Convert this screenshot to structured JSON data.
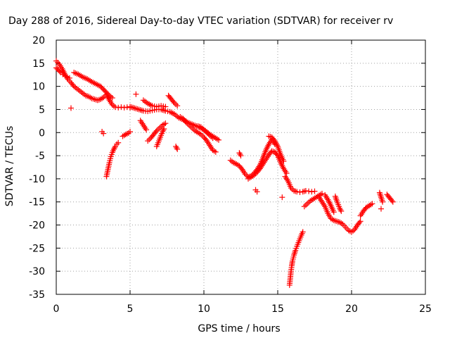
{
  "chart_data": {
    "type": "scatter",
    "title": "Day 288 of 2016, Sidereal Day-to-day VTEC variation (SDTVAR) for receiver rv",
    "xlabel": "GPS time / hours",
    "ylabel": "SDTVAR / TECUs",
    "xlim": [
      0,
      25
    ],
    "ylim": [
      -35,
      20
    ],
    "xticks": [
      0,
      5,
      10,
      15,
      20,
      25
    ],
    "yticks": [
      -35,
      -30,
      -25,
      -20,
      -15,
      -10,
      -5,
      0,
      5,
      10,
      15,
      20
    ],
    "grid": true,
    "marker": "+",
    "color": "#ff0000",
    "segments": [
      {
        "x": [
          0.0,
          0.2,
          0.4,
          0.6,
          0.8,
          1.0,
          1.2,
          1.4,
          1.6,
          1.8,
          2.0,
          2.2,
          2.4,
          2.6,
          2.8,
          3.0,
          3.2,
          3.4,
          3.6,
          3.8,
          4.0,
          4.2,
          4.4,
          4.6,
          4.8,
          5.0
        ],
        "y": [
          15.5,
          14.8,
          13.8,
          12.5,
          11.5,
          10.8,
          10.0,
          9.5,
          9.0,
          8.5,
          8.0,
          7.8,
          7.4,
          7.2,
          7.0,
          7.2,
          7.6,
          8.2,
          7.0,
          6.0,
          5.5,
          5.4,
          5.5,
          5.4,
          5.5,
          5.4
        ]
      },
      {
        "x": [
          0.0,
          0.15,
          0.3,
          0.45,
          0.6,
          0.75,
          0.9
        ],
        "y": [
          14.0,
          13.5,
          13.0,
          12.6,
          12.3,
          12.0,
          11.8
        ]
      },
      {
        "x": [
          1.2,
          1.5,
          1.8,
          2.1,
          2.4,
          2.7,
          3.0,
          3.3,
          3.6,
          3.8
        ],
        "y": [
          13.0,
          12.6,
          12.0,
          11.6,
          11.0,
          10.5,
          10.0,
          9.0,
          8.0,
          7.5
        ]
      },
      {
        "x": [
          3.4,
          3.5,
          3.6,
          3.7,
          3.8,
          3.9,
          4.0,
          4.1,
          4.2
        ],
        "y": [
          -9.5,
          -8.0,
          -6.5,
          -5.2,
          -4.3,
          -3.6,
          -3.0,
          -2.5,
          -2.2
        ]
      },
      {
        "x": [
          4.5,
          4.7,
          4.9,
          5.0
        ],
        "y": [
          -0.8,
          -0.4,
          -0.1,
          0.2
        ]
      },
      {
        "x": [
          3.1,
          3.2
        ],
        "y": [
          0.2,
          -0.2
        ]
      },
      {
        "x": [
          5.0,
          5.3,
          5.6,
          5.9,
          6.2,
          6.5,
          6.8,
          7.1,
          7.4,
          7.7,
          8.0,
          8.3,
          8.6,
          8.9,
          9.2,
          9.5,
          9.8,
          10.1,
          10.4,
          10.7,
          11.0
        ],
        "y": [
          5.6,
          5.3,
          5.0,
          4.7,
          4.6,
          4.8,
          5.0,
          5.0,
          4.7,
          4.5,
          4.0,
          3.2,
          2.8,
          2.2,
          1.8,
          1.4,
          1.0,
          0.4,
          -0.4,
          -1.0,
          -1.6
        ]
      },
      {
        "x": [
          5.9,
          6.2,
          6.5,
          6.8,
          7.1,
          7.4
        ],
        "y": [
          7.0,
          6.3,
          5.8,
          5.6,
          5.8,
          5.6
        ]
      },
      {
        "x": [
          5.7,
          5.9,
          6.1
        ],
        "y": [
          2.6,
          1.6,
          0.6
        ]
      },
      {
        "x": [
          6.2,
          6.4,
          6.6,
          6.8,
          7.0,
          7.2,
          7.4
        ],
        "y": [
          -1.8,
          -1.2,
          -0.4,
          0.4,
          1.0,
          1.6,
          2.0
        ]
      },
      {
        "x": [
          6.8,
          6.9,
          7.0,
          7.1,
          7.2,
          7.3
        ],
        "y": [
          -3.0,
          -2.2,
          -1.4,
          -0.6,
          0.2,
          0.8
        ]
      },
      {
        "x": [
          7.6,
          7.8,
          8.0,
          8.2
        ],
        "y": [
          8.0,
          7.2,
          6.4,
          5.8
        ]
      },
      {
        "x": [
          8.1,
          8.2
        ],
        "y": [
          -3.0,
          -3.6
        ]
      },
      {
        "x": [
          8.4,
          8.6,
          8.8,
          9.0,
          9.2,
          9.4,
          9.6,
          9.8,
          10.0,
          10.2,
          10.4,
          10.6,
          10.8
        ],
        "y": [
          3.4,
          3.0,
          2.2,
          1.6,
          1.0,
          0.4,
          0.0,
          -0.4,
          -1.0,
          -1.8,
          -2.8,
          -3.8,
          -4.2
        ]
      },
      {
        "x": [
          9.6,
          9.8,
          10.0,
          10.2,
          10.4,
          10.6
        ],
        "y": [
          1.4,
          1.2,
          0.6,
          0.0,
          -0.6,
          -1.2
        ]
      },
      {
        "x": [
          11.8,
          12.0,
          12.2,
          12.4,
          12.6,
          12.8,
          13.0,
          13.2,
          13.4,
          13.6,
          13.8,
          14.0,
          14.2,
          14.4,
          14.6,
          14.8
        ],
        "y": [
          -6.0,
          -6.5,
          -6.8,
          -7.2,
          -8.0,
          -9.0,
          -9.6,
          -9.4,
          -8.8,
          -8.0,
          -7.0,
          -5.5,
          -3.8,
          -2.5,
          -1.5,
          -2.5
        ]
      },
      {
        "x": [
          12.4,
          12.5
        ],
        "y": [
          -4.4,
          -5.0
        ]
      },
      {
        "x": [
          13.0,
          13.2,
          13.4,
          13.6,
          13.8,
          14.0,
          14.2,
          14.4,
          14.6,
          14.8,
          15.0,
          15.2,
          15.4,
          15.6
        ],
        "y": [
          -10.0,
          -9.6,
          -9.2,
          -8.6,
          -7.8,
          -6.8,
          -5.8,
          -4.8,
          -4.0,
          -4.2,
          -5.0,
          -6.5,
          -7.8,
          -8.8
        ]
      },
      {
        "x": [
          14.4,
          14.6,
          14.8,
          15.0,
          15.2,
          15.4
        ],
        "y": [
          -0.8,
          -1.0,
          -1.8,
          -3.0,
          -4.8,
          -6.2
        ]
      },
      {
        "x": [
          13.5,
          13.6
        ],
        "y": [
          -12.4,
          -12.8
        ]
      },
      {
        "x": [
          15.5,
          15.7,
          15.9,
          16.1,
          16.3,
          16.5,
          16.7,
          16.9,
          17.1,
          17.3,
          17.5
        ],
        "y": [
          -9.5,
          -10.5,
          -12.0,
          -12.6,
          -12.8,
          -12.9,
          -12.8,
          -12.6,
          -12.7,
          -12.8,
          -12.7
        ]
      },
      {
        "x": [
          15.8,
          15.85,
          15.9,
          15.95,
          16.0,
          16.1,
          16.2,
          16.3,
          16.4,
          16.5,
          16.6,
          16.7
        ],
        "y": [
          -33.0,
          -31.5,
          -30.0,
          -28.8,
          -27.8,
          -26.5,
          -25.5,
          -24.6,
          -23.8,
          -23.0,
          -22.2,
          -21.5
        ]
      },
      {
        "x": [
          15.3
        ],
        "y": [
          -14.0
        ]
      },
      {
        "x": [
          16.8,
          17.0,
          17.2,
          17.4,
          17.6,
          17.8,
          18.0
        ],
        "y": [
          -16.0,
          -15.4,
          -14.8,
          -14.4,
          -14.0,
          -13.6,
          -13.2
        ]
      },
      {
        "x": [
          17.8,
          18.0,
          18.2,
          18.4,
          18.6,
          18.8,
          19.0,
          19.2,
          19.4,
          19.6,
          19.8,
          20.0,
          20.2,
          20.4,
          20.6
        ],
        "y": [
          -14.0,
          -15.0,
          -16.0,
          -17.5,
          -18.6,
          -19.0,
          -19.2,
          -19.4,
          -19.8,
          -20.5,
          -21.2,
          -21.5,
          -21.0,
          -20.0,
          -19.2
        ]
      },
      {
        "x": [
          18.2,
          18.4,
          18.6,
          18.8
        ],
        "y": [
          -13.5,
          -14.5,
          -15.8,
          -17.2
        ]
      },
      {
        "x": [
          18.9,
          19.0,
          19.1,
          19.2,
          19.3
        ],
        "y": [
          -13.8,
          -14.8,
          -15.6,
          -16.4,
          -17.0
        ]
      },
      {
        "x": [
          20.6,
          20.8,
          21.0,
          21.2,
          21.4
        ],
        "y": [
          -18.0,
          -17.0,
          -16.2,
          -15.8,
          -15.4
        ]
      },
      {
        "x": [
          21.9,
          22.0,
          22.1
        ],
        "y": [
          -13.0,
          -14.0,
          -15.0
        ]
      },
      {
        "x": [
          22.4,
          22.6,
          22.8
        ],
        "y": [
          -13.4,
          -14.2,
          -15.0
        ]
      },
      {
        "x": [
          22.0
        ],
        "y": [
          -16.5
        ]
      },
      {
        "x": [
          1.0
        ],
        "y": [
          5.3
        ]
      },
      {
        "x": [
          5.4
        ],
        "y": [
          8.3
        ]
      }
    ]
  }
}
